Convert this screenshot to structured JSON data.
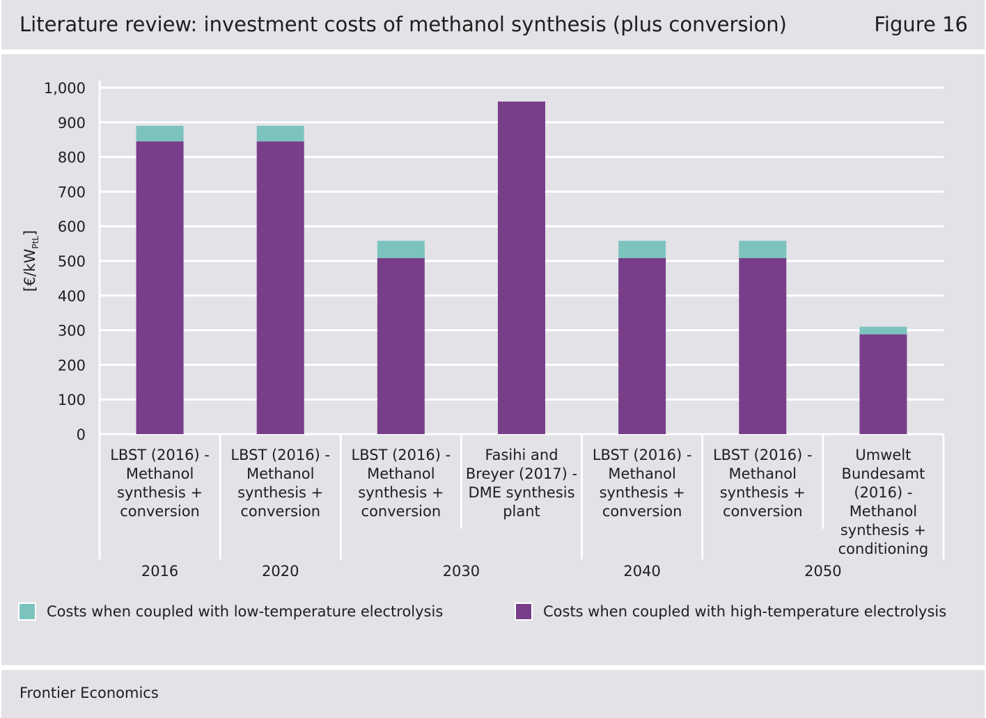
{
  "header": {
    "title": "Literature review: investment costs of methanol synthesis (plus conversion)",
    "figure_label": "Figure 16"
  },
  "footer": {
    "source": "Frontier Economics"
  },
  "colors": {
    "low_temp": "#7cc3be",
    "high_temp": "#793e8a",
    "panel": "#e2e2e7",
    "grid": "#ffffff"
  },
  "chart_data": {
    "type": "bar",
    "stacked": true,
    "ylabel": "[€/kW",
    "ylabel_subscript": "PtL",
    "ylabel_close": "]",
    "ylim": [
      0,
      1000
    ],
    "yticks": [
      "0",
      "100",
      "200",
      "300",
      "400",
      "500",
      "600",
      "700",
      "800",
      "900",
      "1,000"
    ],
    "grid": true,
    "legend_position": "bottom",
    "categories": [
      [
        "LBST (2016) -",
        "Methanol",
        "synthesis +",
        "conversion"
      ],
      [
        "LBST (2016) -",
        "Methanol",
        "synthesis +",
        "conversion"
      ],
      [
        "LBST (2016) -",
        "Methanol",
        "synthesis +",
        "conversion"
      ],
      [
        "Fasihi and",
        "Breyer (2017) -",
        "DME synthesis",
        "plant"
      ],
      [
        "LBST (2016) -",
        "Methanol",
        "synthesis +",
        "conversion"
      ],
      [
        "LBST (2016) -",
        "Methanol",
        "synthesis +",
        "conversion"
      ],
      [
        "Umwelt",
        "Bundesamt",
        "(2016) -",
        "Methanol",
        "synthesis +",
        "conditioning"
      ]
    ],
    "groups": [
      {
        "label": "2016",
        "span": [
          0,
          0
        ]
      },
      {
        "label": "2020",
        "span": [
          1,
          1
        ]
      },
      {
        "label": "2030",
        "span": [
          2,
          3
        ]
      },
      {
        "label": "2040",
        "span": [
          4,
          4
        ]
      },
      {
        "label": "2050",
        "span": [
          5,
          6
        ]
      }
    ],
    "series": [
      {
        "name": "Costs when coupled with high-temperature electrolysis",
        "color": "#793e8a",
        "values": [
          845,
          845,
          508,
          960,
          508,
          508,
          288
        ]
      },
      {
        "name": "Costs when coupled with low-temperature electrolysis",
        "color": "#7cc3be",
        "values": [
          45,
          45,
          50,
          0,
          50,
          50,
          22
        ]
      }
    ]
  }
}
